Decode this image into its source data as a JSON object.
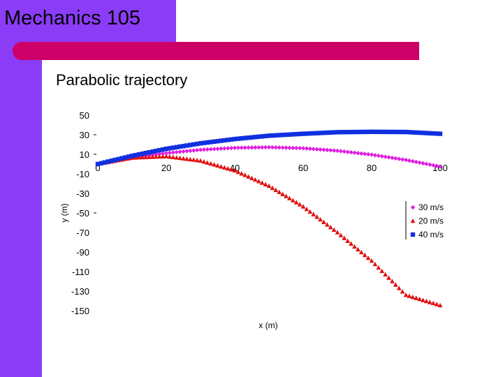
{
  "slide": {
    "title": "Mechanics 105",
    "subtitle": "Parabolic trajectory"
  },
  "colors": {
    "purple": "#8b3cf7",
    "accent": "#cc0066"
  },
  "chart_data": {
    "type": "scatter",
    "title": "",
    "xlabel": "x (m)",
    "ylabel": "y (m)",
    "xlim": [
      0,
      100
    ],
    "ylim": [
      -150,
      50
    ],
    "x_ticks": [
      0,
      20,
      40,
      60,
      80,
      100
    ],
    "y_ticks": [
      50,
      30,
      10,
      -10,
      -30,
      -50,
      -70,
      -90,
      -110,
      -130,
      -150
    ],
    "grid": false,
    "legend_position": "right",
    "series": [
      {
        "name": "30 m/s",
        "color": "#e020e0",
        "marker": "diamond",
        "x": [
          0,
          10,
          20,
          30,
          40,
          50,
          60,
          70,
          80,
          90,
          100
        ],
        "y": [
          0,
          6.2,
          11.2,
          14.6,
          16.6,
          17.2,
          16.2,
          13.6,
          9.6,
          4.2,
          -2.6
        ]
      },
      {
        "name": "20 m/s",
        "color": "#e01010",
        "marker": "triangle",
        "x": [
          0,
          10,
          20,
          30,
          40,
          50,
          60,
          70,
          80,
          90,
          100
        ],
        "y": [
          0,
          6.4,
          7.9,
          3.4,
          -6.6,
          -22.4,
          -43.5,
          -70.0,
          -99.0,
          -134.0,
          -144.5
        ]
      },
      {
        "name": "40 m/s",
        "color": "#1030e0",
        "marker": "square",
        "x": [
          0,
          10,
          20,
          30,
          40,
          50,
          60,
          70,
          80,
          90,
          100
        ],
        "y": [
          0,
          8.4,
          15.6,
          21.2,
          25.6,
          29.0,
          31.0,
          32.6,
          33.0,
          32.8,
          31.0
        ]
      }
    ]
  }
}
